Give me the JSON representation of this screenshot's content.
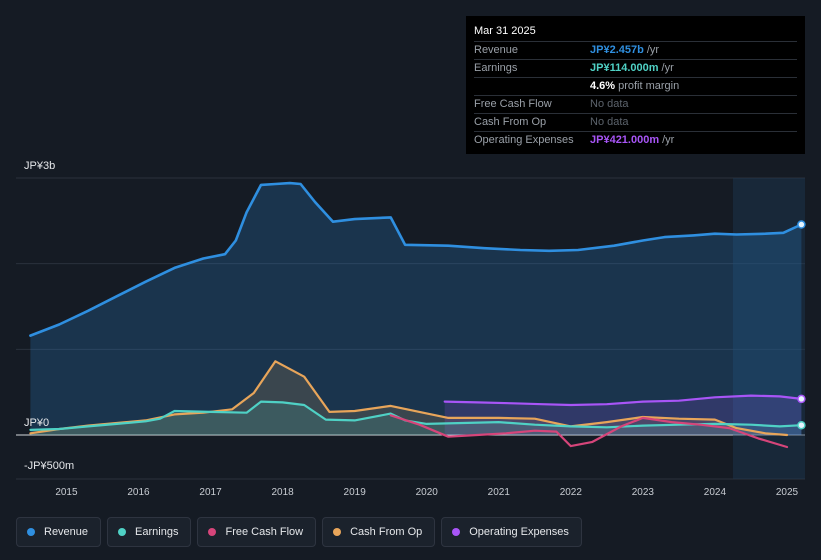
{
  "chart_data": {
    "type": "area",
    "unit": "JP¥",
    "y_axis": {
      "labels": [
        {
          "text": "JP¥3b",
          "value": 3000
        },
        {
          "text": "JP¥0",
          "value": 0
        },
        {
          "text": "-JP¥500m",
          "value": -500
        }
      ],
      "ylim": [
        -500,
        3000
      ]
    },
    "x_axis": {
      "ticks": [
        "2015",
        "2016",
        "2017",
        "2018",
        "2019",
        "2020",
        "2021",
        "2022",
        "2023",
        "2024",
        "2025"
      ],
      "tick_values": [
        2015,
        2016,
        2017,
        2018,
        2019,
        2020,
        2021,
        2022,
        2023,
        2024,
        2025
      ],
      "xlim": [
        2014.3,
        2025.25
      ]
    },
    "forecast_start": 2024.25,
    "series": [
      {
        "name": "Revenue",
        "color": "#2f8fe0",
        "fill": true,
        "x": [
          2014.5,
          2014.9,
          2015.3,
          2015.7,
          2016.1,
          2016.5,
          2016.9,
          2017.2,
          2017.35,
          2017.5,
          2017.7,
          2017.9,
          2018.1,
          2018.25,
          2018.45,
          2018.7,
          2019.0,
          2019.5,
          2019.7,
          2020.3,
          2020.8,
          2021.3,
          2021.7,
          2022.1,
          2022.6,
          2023.0,
          2023.3,
          2023.7,
          2024.0,
          2024.3,
          2024.7,
          2024.95,
          2025.2
        ],
        "values": [
          1160,
          1290,
          1450,
          1620,
          1790,
          1950,
          2060,
          2110,
          2270,
          2600,
          2920,
          2930,
          2940,
          2930,
          2720,
          2490,
          2520,
          2540,
          2220,
          2210,
          2180,
          2160,
          2150,
          2160,
          2210,
          2270,
          2310,
          2330,
          2350,
          2340,
          2350,
          2360,
          2457
        ]
      },
      {
        "name": "Earnings",
        "color": "#4fd1c5",
        "fill": true,
        "x": [
          2014.5,
          2014.9,
          2015.3,
          2015.7,
          2016.1,
          2016.3,
          2016.5,
          2017.0,
          2017.5,
          2017.7,
          2018.0,
          2018.3,
          2018.6,
          2019.0,
          2019.5,
          2019.7,
          2020.0,
          2020.5,
          2021.0,
          2021.5,
          2022.0,
          2022.5,
          2023.0,
          2023.5,
          2024.0,
          2024.5,
          2024.9,
          2025.2
        ],
        "values": [
          60,
          70,
          100,
          130,
          160,
          190,
          280,
          270,
          260,
          390,
          380,
          350,
          180,
          170,
          250,
          170,
          130,
          140,
          150,
          120,
          100,
          90,
          110,
          120,
          130,
          120,
          100,
          114
        ]
      },
      {
        "name": "Free Cash Flow",
        "color": "#d6457a",
        "fill": false,
        "x": [
          2019.5,
          2019.9,
          2020.3,
          2020.7,
          2021.1,
          2021.5,
          2021.8,
          2022.0,
          2022.3,
          2022.7,
          2023.0,
          2023.4,
          2023.8,
          2024.2,
          2024.6,
          2025.0
        ],
        "values": [
          230,
          120,
          -20,
          0,
          20,
          50,
          40,
          -130,
          -80,
          100,
          200,
          150,
          120,
          80,
          -40,
          -140
        ]
      },
      {
        "name": "Cash From Op",
        "color": "#e8a55a",
        "fill": true,
        "x": [
          2014.5,
          2014.9,
          2015.3,
          2015.7,
          2016.1,
          2016.5,
          2016.9,
          2017.3,
          2017.6,
          2017.9,
          2018.3,
          2018.65,
          2019.0,
          2019.5,
          2019.9,
          2020.3,
          2021.0,
          2021.5,
          2022.0,
          2022.5,
          2023.0,
          2023.5,
          2024.0,
          2024.3,
          2024.7,
          2025.0
        ],
        "values": [
          20,
          70,
          110,
          140,
          170,
          240,
          260,
          300,
          490,
          860,
          680,
          270,
          280,
          340,
          270,
          200,
          200,
          190,
          100,
          150,
          210,
          190,
          180,
          80,
          20,
          0
        ]
      },
      {
        "name": "Operating Expenses",
        "color": "#a855f7",
        "fill": true,
        "x": [
          2020.25,
          2020.7,
          2021.2,
          2021.6,
          2022.0,
          2022.5,
          2023.0,
          2023.5,
          2024.0,
          2024.5,
          2024.9,
          2025.2
        ],
        "values": [
          390,
          380,
          370,
          360,
          350,
          360,
          390,
          400,
          440,
          460,
          450,
          421
        ]
      }
    ]
  },
  "tooltip": {
    "date": "Mar 31 2025",
    "rows": {
      "revenue": {
        "label": "Revenue",
        "value": "JP¥2.457b",
        "unit": "/yr"
      },
      "earnings": {
        "label": "Earnings",
        "value": "JP¥114.000m",
        "unit": "/yr"
      },
      "margin": {
        "value": "4.6%",
        "unit": "profit margin"
      },
      "fcf": {
        "label": "Free Cash Flow",
        "value": "No data"
      },
      "cfo": {
        "label": "Cash From Op",
        "value": "No data"
      },
      "opex": {
        "label": "Operating Expenses",
        "value": "JP¥421.000m",
        "unit": "/yr"
      }
    }
  },
  "legend": [
    {
      "label": "Revenue",
      "color": "#2f8fe0"
    },
    {
      "label": "Earnings",
      "color": "#4fd1c5"
    },
    {
      "label": "Free Cash Flow",
      "color": "#d6457a"
    },
    {
      "label": "Cash From Op",
      "color": "#e8a55a"
    },
    {
      "label": "Operating Expenses",
      "color": "#a855f7"
    }
  ]
}
